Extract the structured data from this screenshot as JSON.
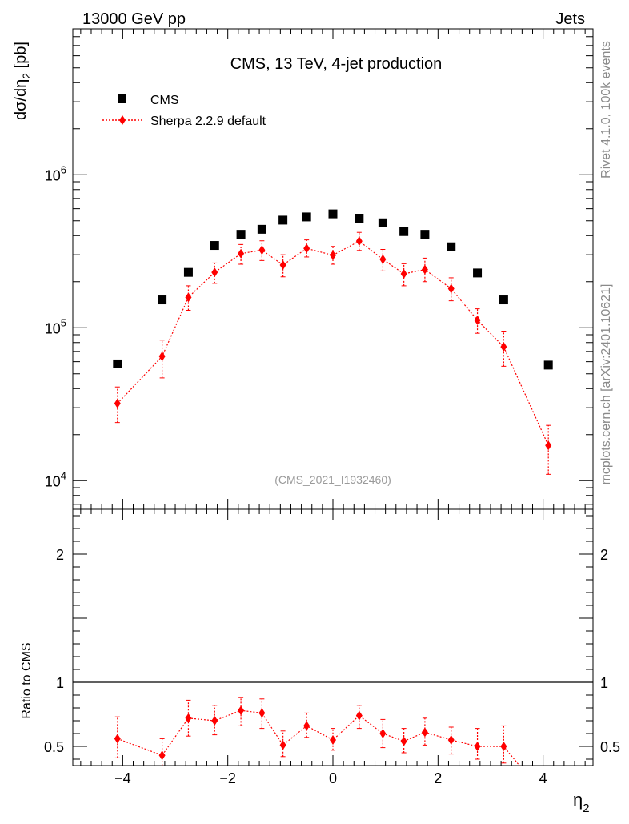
{
  "header": {
    "beam_label": "13000 GeV pp",
    "category_label": "Jets"
  },
  "side_labels": {
    "rivet": "Rivet 4.1.0,  100k events",
    "source": "mcplots.cern.ch [arXiv:2401.10621]"
  },
  "chart_data": {
    "type": "scatter",
    "title": "CMS, 13 TeV, 4-jet production",
    "analysis_id": "(CMS_2021_I1932460)",
    "xlabel": "η₂",
    "xlabel_main": "η",
    "xlabel_sub": "2",
    "ylabel_main": "dσ/dη",
    "ylabel_sub": "2",
    "ylabel_unit": " [pb]",
    "ratio_ylabel": "Ratio to CMS",
    "xlim": [
      -4.95,
      4.95
    ],
    "ylim": [
      6500,
      9000000
    ],
    "ratio_ylim": [
      0.35,
      2.35
    ],
    "y_scale": "log",
    "x_ticks": [
      -4,
      -2,
      0,
      2,
      4
    ],
    "x_tick_labels": [
      "−4",
      "−2",
      "0",
      "2",
      "4"
    ],
    "y_ticks": [
      10000,
      100000,
      1000000
    ],
    "y_tick_labels": [
      {
        "base": "10",
        "exp": "4"
      },
      {
        "base": "10",
        "exp": "5"
      },
      {
        "base": "10",
        "exp": "6"
      }
    ],
    "ratio_ticks": [
      0.5,
      1,
      2
    ],
    "ratio_tick_labels": [
      "0.5",
      "1",
      "2"
    ],
    "legend": {
      "position": "top-left",
      "entries": [
        "CMS",
        "Sherpa 2.2.9 default"
      ]
    },
    "series": [
      {
        "name": "CMS",
        "color": "#000000",
        "marker": "square",
        "x": [
          -4.1,
          -3.25,
          -2.75,
          -2.25,
          -1.75,
          -1.35,
          -0.95,
          -0.5,
          0,
          0.5,
          0.95,
          1.35,
          1.75,
          2.25,
          2.75,
          3.25,
          4.1
        ],
        "y": [
          58000,
          152000,
          230000,
          345000,
          408000,
          440000,
          505000,
          530000,
          555000,
          520000,
          485000,
          425000,
          408000,
          338000,
          228000,
          152000,
          57000
        ]
      },
      {
        "name": "Sherpa 2.2.9 default",
        "color": "#ff0000",
        "marker": "diamond",
        "x": [
          -4.1,
          -3.25,
          -2.75,
          -2.25,
          -1.75,
          -1.35,
          -0.95,
          -0.5,
          0,
          0.5,
          0.95,
          1.35,
          1.75,
          2.25,
          2.75,
          3.25,
          4.1
        ],
        "y": [
          32000,
          65000,
          158000,
          230000,
          305000,
          322000,
          257000,
          330000,
          298000,
          368000,
          280000,
          225000,
          240000,
          180000,
          112000,
          75000,
          17000
        ],
        "y_low": [
          24000,
          47000,
          130000,
          195000,
          260000,
          275000,
          215000,
          290000,
          260000,
          320000,
          235000,
          188000,
          200000,
          150000,
          92000,
          56000,
          11000
        ],
        "y_high": [
          41000,
          83000,
          188000,
          265000,
          350000,
          370000,
          300000,
          375000,
          340000,
          420000,
          325000,
          262000,
          285000,
          212000,
          133000,
          95000,
          23000
        ]
      }
    ],
    "ratio_series": {
      "name": "Sherpa 2.2.9 default / CMS",
      "color": "#ff0000",
      "x": [
        -4.1,
        -3.25,
        -2.75,
        -2.25,
        -1.75,
        -1.35,
        -0.95,
        -0.5,
        0,
        0.5,
        0.95,
        1.35,
        1.75,
        2.25,
        2.75,
        3.25
      ],
      "y": [
        0.56,
        0.43,
        0.72,
        0.7,
        0.78,
        0.76,
        0.51,
        0.66,
        0.55,
        0.74,
        0.6,
        0.54,
        0.61,
        0.55,
        0.5,
        0.5
      ],
      "y_low": [
        0.41,
        0.35,
        0.58,
        0.59,
        0.66,
        0.64,
        0.42,
        0.57,
        0.47,
        0.64,
        0.49,
        0.45,
        0.51,
        0.44,
        0.4,
        0.37
      ],
      "y_high": [
        0.73,
        0.56,
        0.86,
        0.82,
        0.88,
        0.87,
        0.62,
        0.76,
        0.64,
        0.82,
        0.71,
        0.64,
        0.72,
        0.65,
        0.64,
        0.66
      ],
      "clip_to": [
        3.55,
        0.35
      ]
    },
    "reference_line": 1
  }
}
